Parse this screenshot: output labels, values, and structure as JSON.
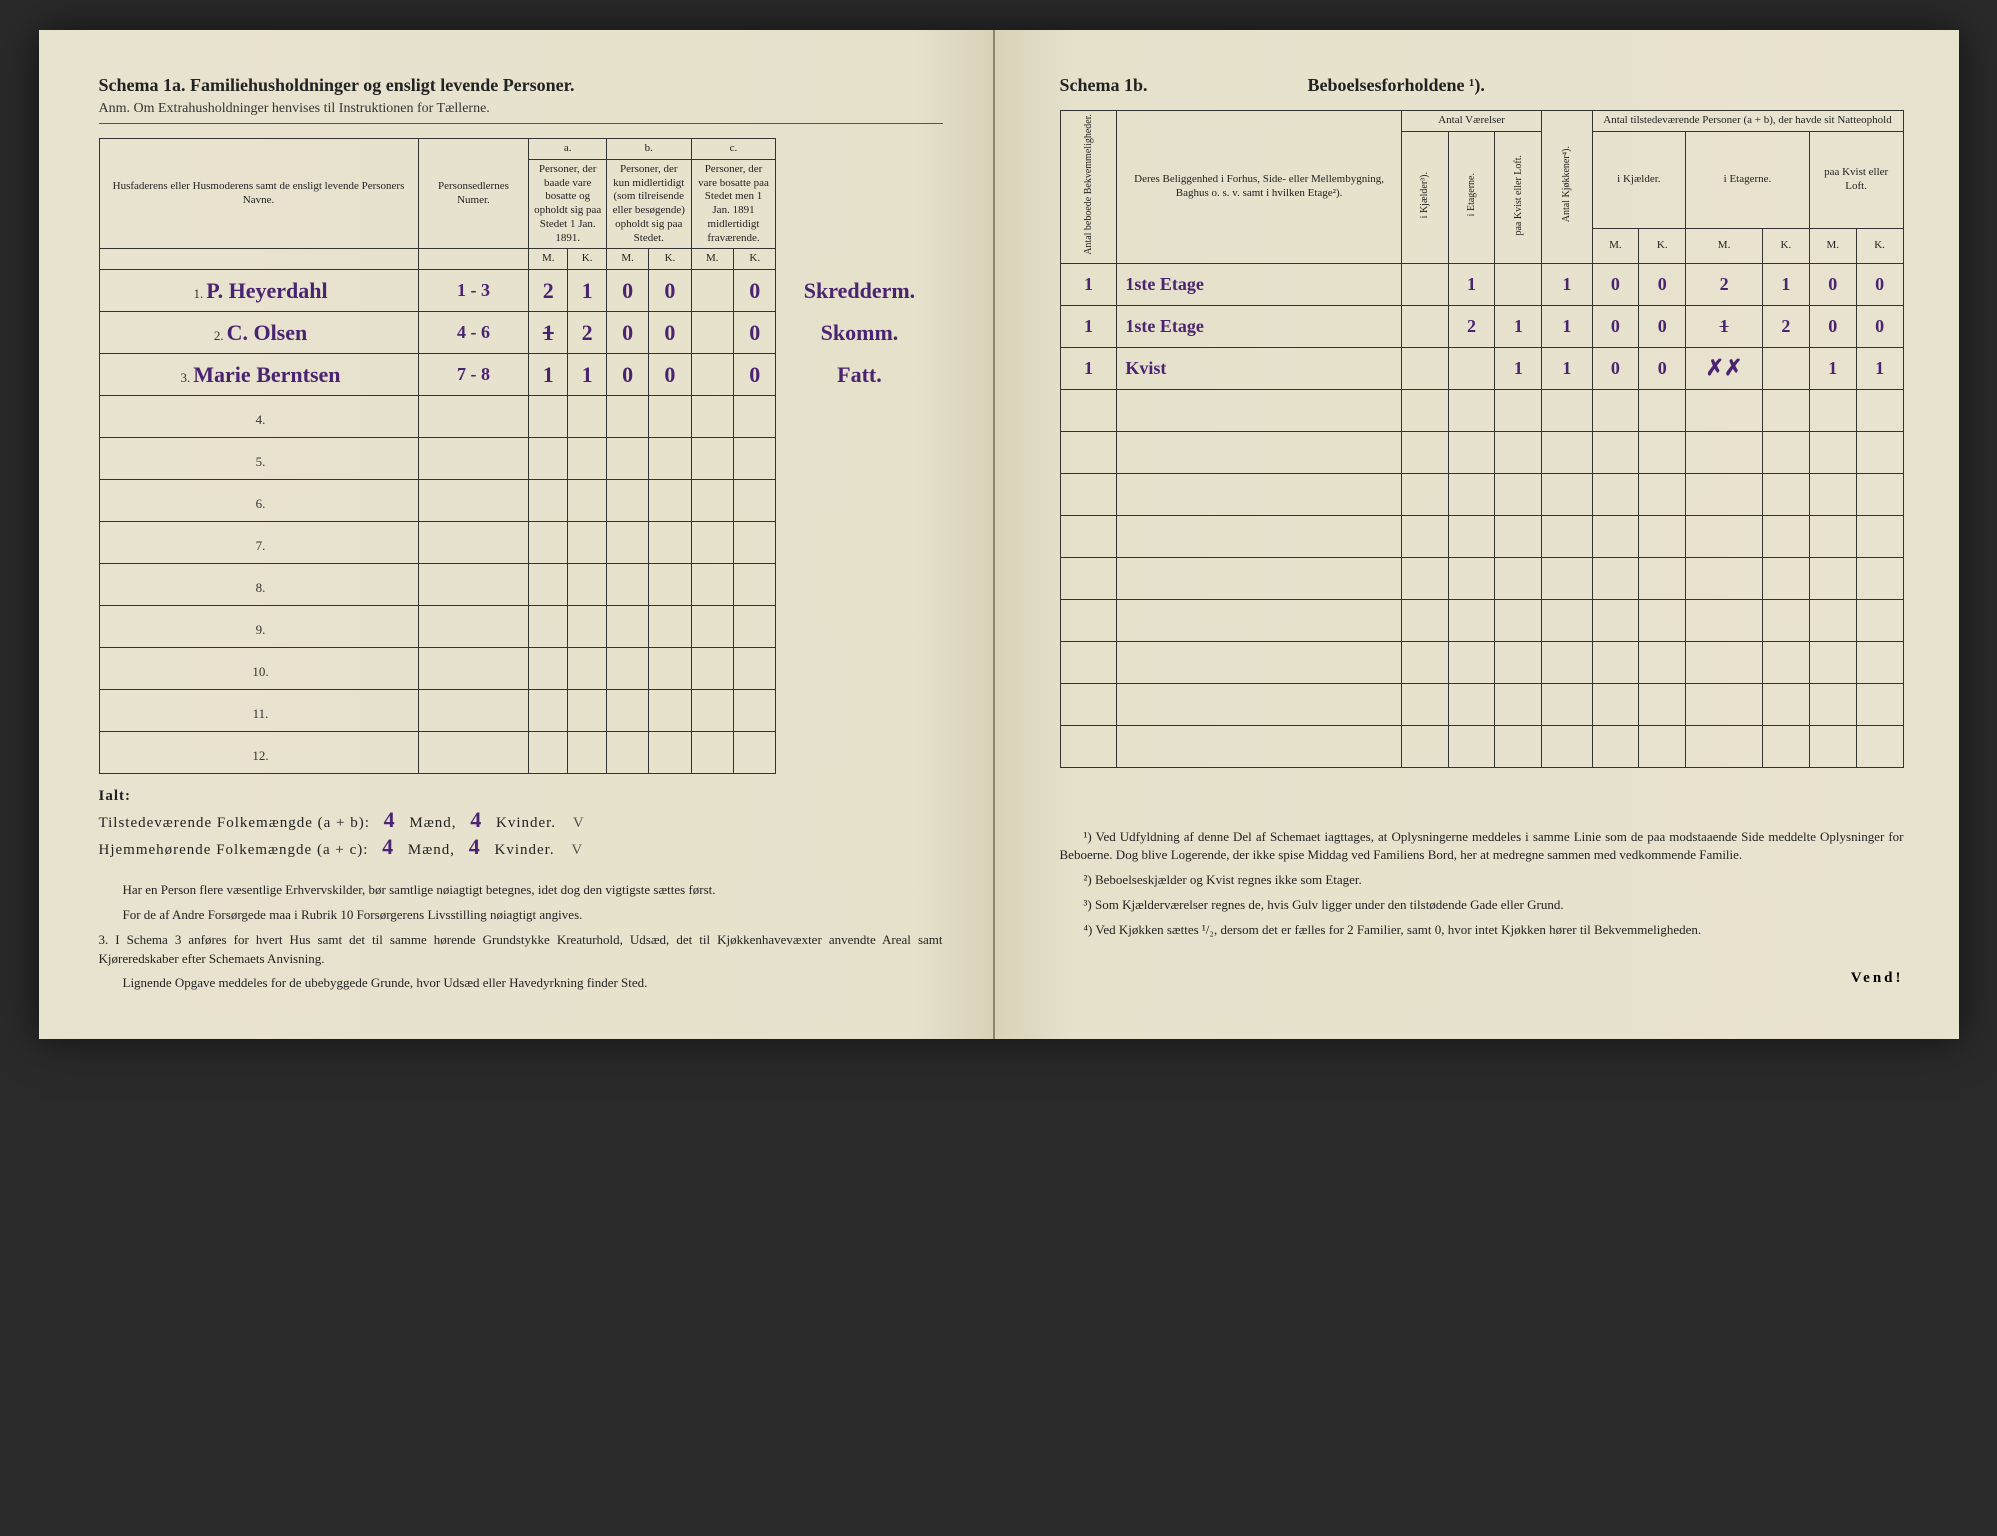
{
  "left": {
    "title": "Schema 1a.  Familiehusholdninger og ensligt levende Personer.",
    "subtitle": "Anm. Om Extrahusholdninger henvises til Instruktionen for Tællerne.",
    "headers": {
      "name": "Husfaderens eller Husmoderens samt de ensligt levende Personers Navne.",
      "num": "Personsedlernes Numer.",
      "a_top": "a.",
      "a": "Personer, der baade vare bosatte og opholdt sig paa Stedet 1 Jan. 1891.",
      "b_top": "b.",
      "b": "Personer, der kun midlertidigt (som tilreisende eller besøgende) opholdt sig paa Stedet.",
      "c_top": "c.",
      "c": "Personer, der vare bosatte paa Stedet men 1 Jan. 1891 midlertidigt fraværende.",
      "M": "M.",
      "K": "K."
    },
    "rows": [
      {
        "n": "1.",
        "name": "P. Heyerdahl",
        "num": "1 - 3",
        "aM": "2",
        "aK": "1",
        "bM": "0",
        "bK": "0",
        "cM": "",
        "cK": "0",
        "note": "Skredderm."
      },
      {
        "n": "2.",
        "name": "C. Olsen",
        "num": "4 - 6",
        "aM": "1",
        "aK": "2",
        "bM": "0",
        "bK": "0",
        "cM": "",
        "cK": "0",
        "note": "Skomm.",
        "aM_strike": true
      },
      {
        "n": "3.",
        "name": "Marie Berntsen",
        "num": "7 - 8",
        "aM": "1",
        "aK": "1",
        "bM": "0",
        "bK": "0",
        "cM": "",
        "cK": "0",
        "note": "Fatt."
      },
      {
        "n": "4."
      },
      {
        "n": "5."
      },
      {
        "n": "6."
      },
      {
        "n": "7."
      },
      {
        "n": "8."
      },
      {
        "n": "9."
      },
      {
        "n": "10."
      },
      {
        "n": "11."
      },
      {
        "n": "12."
      }
    ],
    "totals": {
      "ialt": "Ialt:",
      "line1_label": "Tilstedeværende Folkemængde (a + b):",
      "line2_label": "Hjemmehørende Folkemængde (a + c):",
      "m1": "4",
      "k1": "4",
      "m2": "4",
      "k2": "4",
      "maend": "Mænd,",
      "kvinder": "Kvinder."
    },
    "notes": [
      "Har en Person flere væsentlige Erhvervskilder, bør samtlige nøiagtigt betegnes, idet dog den vigtigste sættes først.",
      "For de af Andre Forsørgede maa i Rubrik 10 Forsørgerens Livsstilling nøiagtigt angives.",
      "3. I Schema 3 anføres for hvert Hus samt det til samme hørende Grundstykke Kreaturhold, Udsæd, det til Kjøkkenhavevæxter anvendte Areal samt Kjøreredskaber efter Schemaets Anvisning.",
      "Lignende Opgave meddeles for de ubebyggede Grunde, hvor Udsæd eller Havedyrkning finder Sted."
    ]
  },
  "right": {
    "title_a": "Schema 1b.",
    "title_b": "Beboelsesforholdene ¹).",
    "headers": {
      "bekv": "Antal beboede Bekvemmeligheder.",
      "belig": "Deres Beliggenhed i Forhus, Side- eller Mellembygning, Baghus o. s. v. samt i hvilken Etage²).",
      "vaer": "Antal Værelser",
      "kjael": "i Kjælder³).",
      "etag": "i Etagerne.",
      "kvist": "paa Kvist eller Loft.",
      "kjok": "Antal Kjøkkener⁴).",
      "pers": "Antal tilstedeværende Personer (a + b), der havde sit Natteophold",
      "p_kjael": "i Kjælder.",
      "p_etag": "i Etagerne.",
      "p_kvist": "paa Kvist eller Loft.",
      "M": "M.",
      "K": "K."
    },
    "rows": [
      {
        "bekv": "1",
        "belig": "1ste Etage",
        "kj": "",
        "et": "1",
        "kv": "",
        "kk": "1",
        "pm1": "0",
        "pk1": "0",
        "pm2": "2",
        "pk2": "1",
        "pm3": "0",
        "pk3": "0",
        "chk": "V"
      },
      {
        "bekv": "1",
        "belig": "1ste Etage",
        "kj": "",
        "et": "2",
        "kv": "1",
        "kk": "1",
        "pm1": "0",
        "pk1": "0",
        "pm2": "1",
        "pk2": "2",
        "pm3": "0",
        "pk3": "0",
        "chk": "V",
        "pm2_strike": true
      },
      {
        "bekv": "1",
        "belig": "Kvist",
        "kj": "",
        "et": "",
        "kv": "1",
        "kk": "1",
        "pm1": "0",
        "pk1": "0",
        "pm2": "",
        "pk2": "",
        "pm3": "1",
        "pk3": "1",
        "chk": "V",
        "pm2_strike_x": true
      },
      {},
      {},
      {},
      {},
      {},
      {},
      {},
      {},
      {}
    ],
    "notes": [
      "¹) Ved Udfyldning af denne Del af Schemaet iagttages, at Oplysningerne meddeles i samme Linie som de paa modstaaende Side meddelte Oplysninger for Beboerne. Dog blive Logerende, der ikke spise Middag ved Familiens Bord, her at medregne sammen med vedkommende Familie.",
      "²) Beboelseskjælder og Kvist regnes ikke som Etager.",
      "³) Som Kjælderværelser regnes de, hvis Gulv ligger under den tilstødende Gade eller Grund.",
      "⁴) Ved Kjøkken sættes ¹/₂, dersom det er fælles for 2 Familier, samt 0, hvor intet Kjøkken hører til Bekvemmeligheden."
    ],
    "vend": "Vend!"
  }
}
